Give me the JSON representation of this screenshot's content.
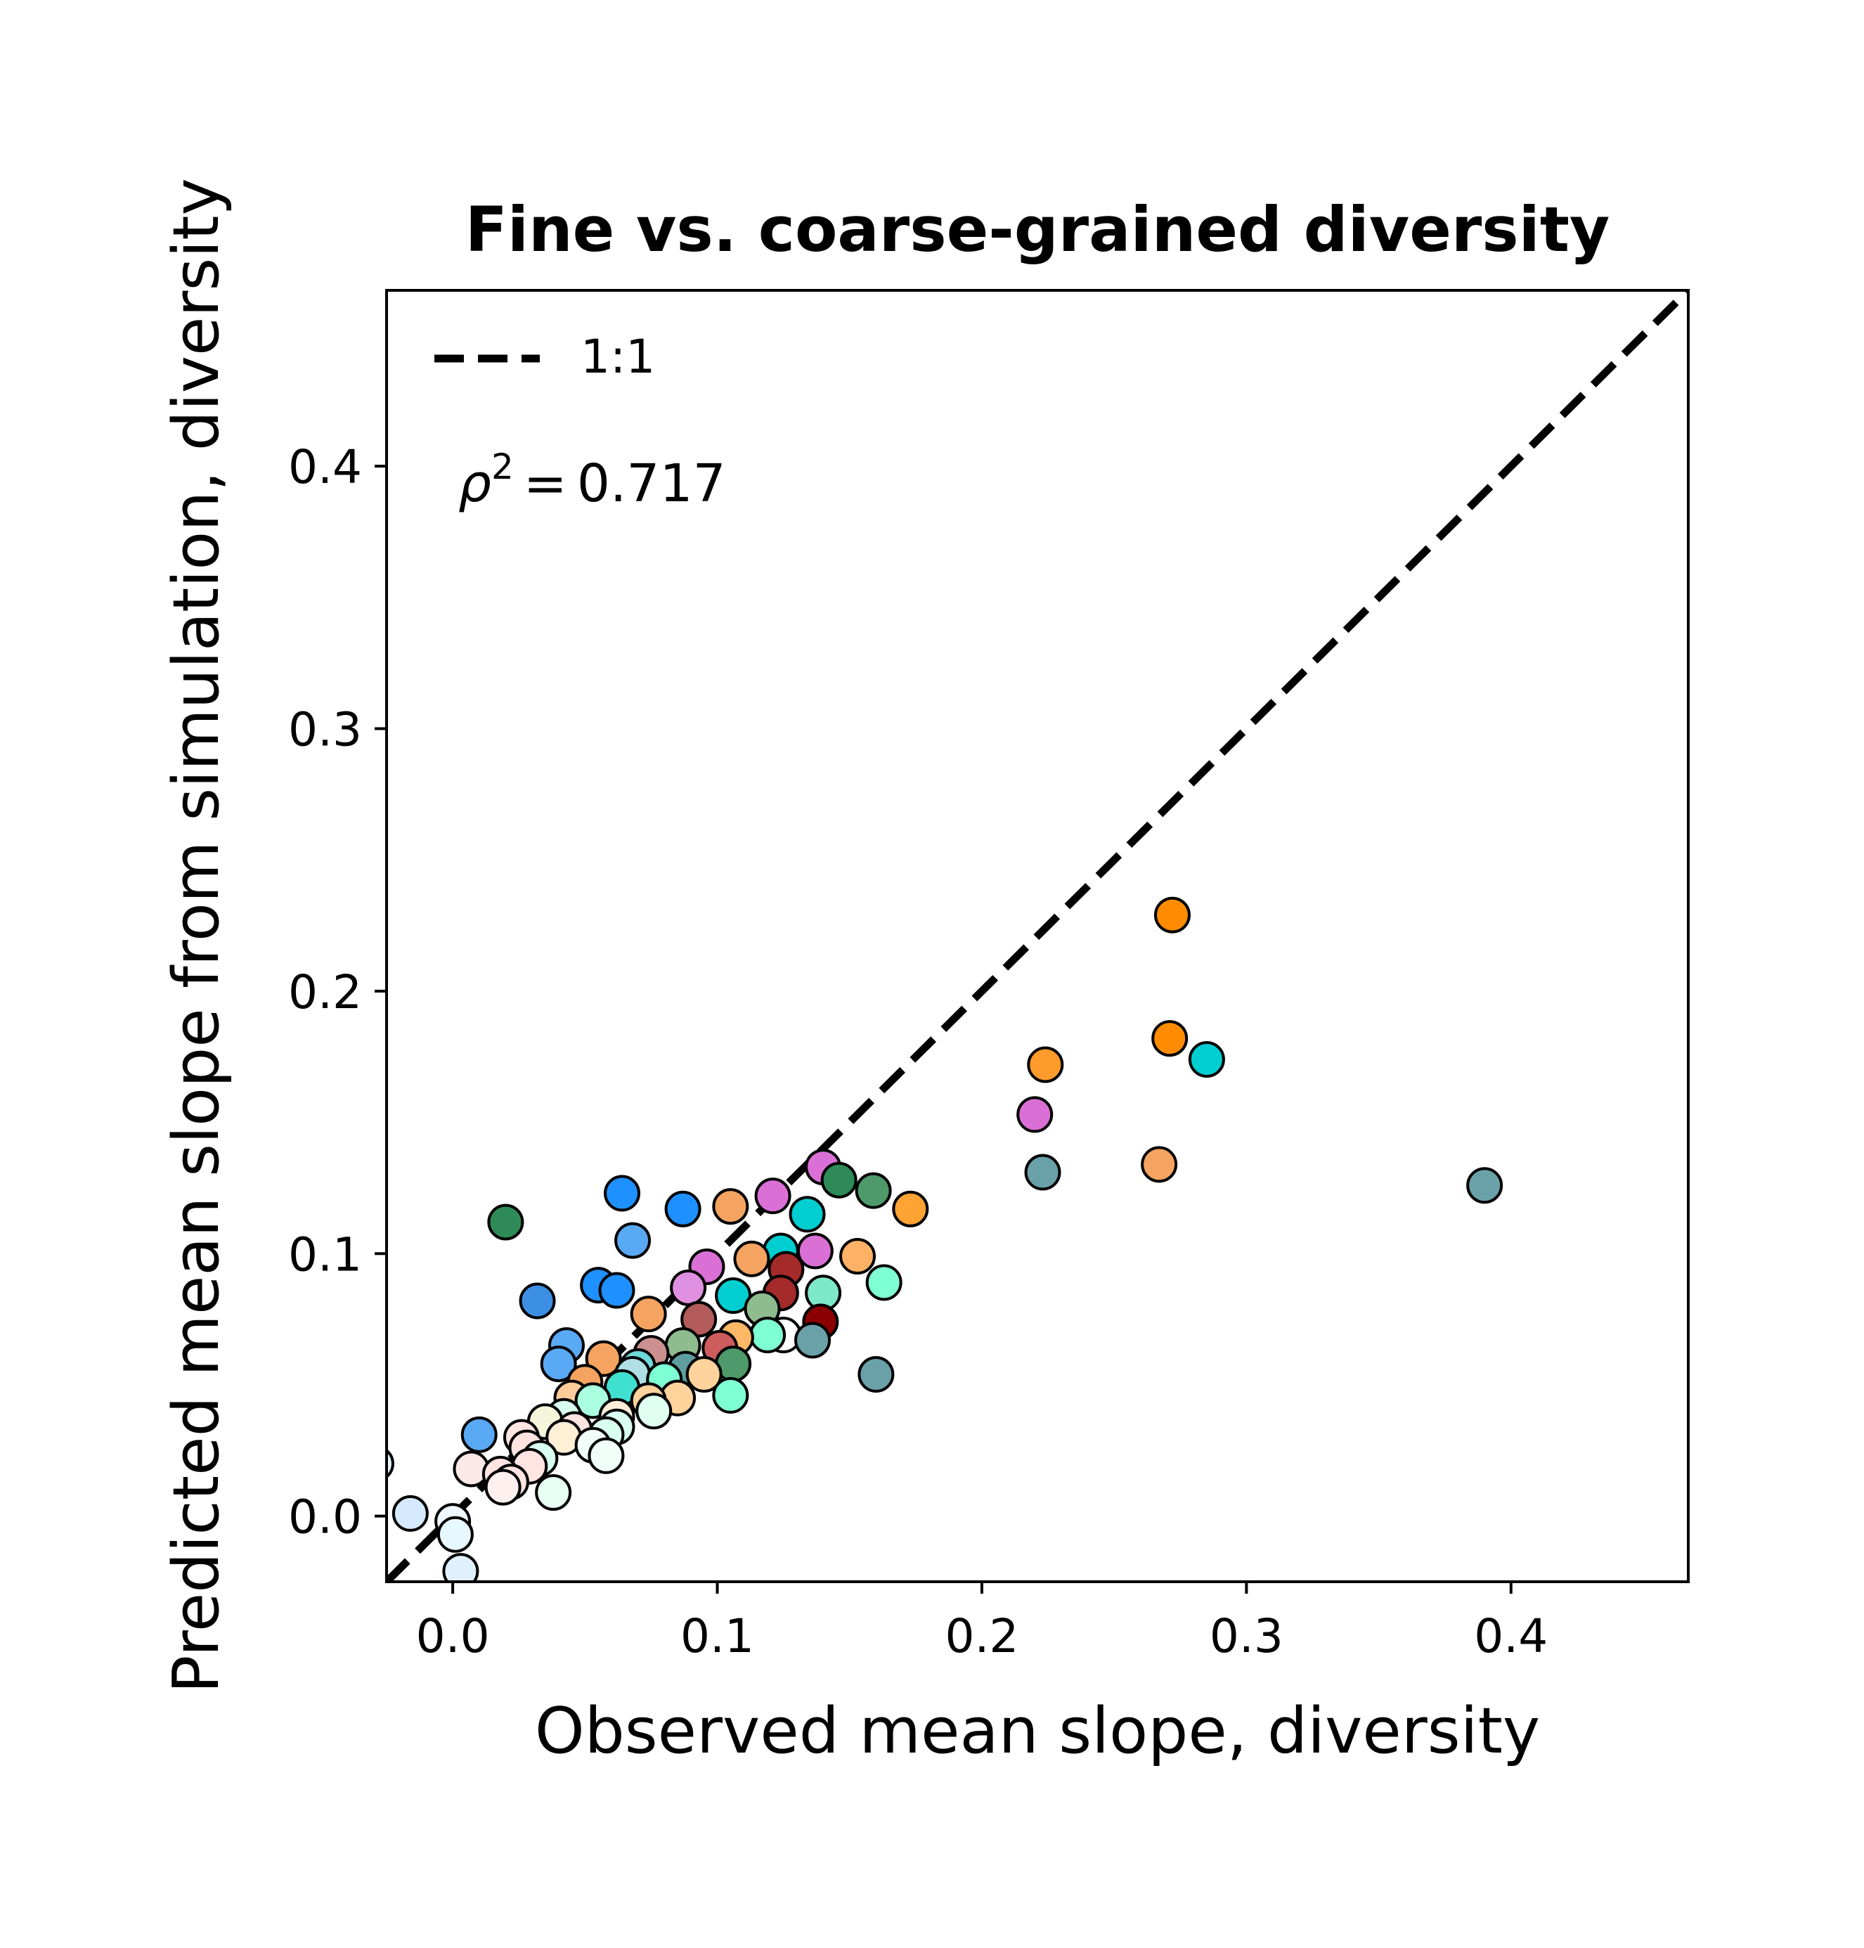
{
  "chart_data": {
    "type": "scatter",
    "title": "Fine vs. coarse-grained diversity",
    "xlabel": "Observed mean slope, diversity",
    "ylabel": "Predicted mean slope from simulation, diversity",
    "xlim": [
      -0.025,
      0.467
    ],
    "ylim": [
      -0.025,
      0.467
    ],
    "x_ticks": [
      0.0,
      0.1,
      0.2,
      0.3,
      0.4
    ],
    "y_ticks": [
      0.0,
      0.1,
      0.2,
      0.3,
      0.4
    ],
    "x_tick_labels": [
      "0.0",
      "0.1",
      "0.2",
      "0.3",
      "0.4"
    ],
    "y_tick_labels": [
      "0.0",
      "0.1",
      "0.2",
      "0.3",
      "0.4"
    ],
    "legend": {
      "label": "1:1",
      "location": "upper left",
      "frame": false
    },
    "annotation": {
      "symbol": "ρ",
      "superscript": "2",
      "operator": "=",
      "value": "0.717"
    },
    "reference_line": {
      "type": "identity",
      "style": "dashed",
      "color": "#000000"
    },
    "grid": false,
    "points": [
      {
        "x": 0.272,
        "y": 0.229,
        "color": "#ff8c00"
      },
      {
        "x": 0.271,
        "y": 0.182,
        "color": "#ff8c00"
      },
      {
        "x": 0.285,
        "y": 0.174,
        "color": "#00ced1"
      },
      {
        "x": 0.224,
        "y": 0.172,
        "color": "#ff9b2b"
      },
      {
        "x": 0.22,
        "y": 0.153,
        "color": "#da70d6"
      },
      {
        "x": 0.267,
        "y": 0.134,
        "color": "#f4a460"
      },
      {
        "x": 0.223,
        "y": 0.131,
        "color": "#6aa1a8"
      },
      {
        "x": 0.39,
        "y": 0.126,
        "color": "#6aa1a8"
      },
      {
        "x": 0.16,
        "y": 0.054,
        "color": "#6aa1a8"
      },
      {
        "x": 0.14,
        "y": 0.133,
        "color": "#da70d6"
      },
      {
        "x": 0.146,
        "y": 0.128,
        "color": "#2e8b57"
      },
      {
        "x": 0.159,
        "y": 0.124,
        "color": "#4e9a6a"
      },
      {
        "x": 0.173,
        "y": 0.117,
        "color": "#ffa333"
      },
      {
        "x": 0.121,
        "y": 0.122,
        "color": "#da70d6"
      },
      {
        "x": 0.105,
        "y": 0.118,
        "color": "#f4a460"
      },
      {
        "x": 0.087,
        "y": 0.117,
        "color": "#1e90ff"
      },
      {
        "x": 0.064,
        "y": 0.123,
        "color": "#1e90ff"
      },
      {
        "x": 0.134,
        "y": 0.115,
        "color": "#00ced1"
      },
      {
        "x": 0.02,
        "y": 0.112,
        "color": "#2e8b57"
      },
      {
        "x": 0.068,
        "y": 0.105,
        "color": "#5aa9f5"
      },
      {
        "x": 0.124,
        "y": 0.101,
        "color": "#00ced1"
      },
      {
        "x": 0.137,
        "y": 0.101,
        "color": "#da70d6"
      },
      {
        "x": 0.153,
        "y": 0.099,
        "color": "#ffb266"
      },
      {
        "x": 0.113,
        "y": 0.098,
        "color": "#f4a460"
      },
      {
        "x": 0.126,
        "y": 0.094,
        "color": "#a52a2a"
      },
      {
        "x": 0.096,
        "y": 0.095,
        "color": "#da70d6"
      },
      {
        "x": 0.163,
        "y": 0.089,
        "color": "#7fffd4"
      },
      {
        "x": 0.055,
        "y": 0.088,
        "color": "#1e90ff"
      },
      {
        "x": 0.089,
        "y": 0.087,
        "color": "#e090e0"
      },
      {
        "x": 0.062,
        "y": 0.086,
        "color": "#1e90ff"
      },
      {
        "x": 0.124,
        "y": 0.085,
        "color": "#a52a2a"
      },
      {
        "x": 0.14,
        "y": 0.085,
        "color": "#7fe8c8"
      },
      {
        "x": 0.106,
        "y": 0.084,
        "color": "#00ced1"
      },
      {
        "x": 0.032,
        "y": 0.082,
        "color": "#3d8fe6"
      },
      {
        "x": 0.117,
        "y": 0.079,
        "color": "#8fbc8f"
      },
      {
        "x": 0.074,
        "y": 0.077,
        "color": "#f4a460"
      },
      {
        "x": 0.093,
        "y": 0.075,
        "color": "#b35a5a"
      },
      {
        "x": 0.139,
        "y": 0.074,
        "color": "#8b0000"
      },
      {
        "x": 0.125,
        "y": 0.069,
        "color": "#ffffff"
      },
      {
        "x": 0.119,
        "y": 0.069,
        "color": "#7fffd4"
      },
      {
        "x": 0.107,
        "y": 0.068,
        "color": "#ffb866"
      },
      {
        "x": 0.136,
        "y": 0.067,
        "color": "#6aa1a8"
      },
      {
        "x": 0.043,
        "y": 0.065,
        "color": "#5aa9f5"
      },
      {
        "x": 0.087,
        "y": 0.065,
        "color": "#8fbc8f"
      },
      {
        "x": 0.101,
        "y": 0.064,
        "color": "#cd5c5c"
      },
      {
        "x": 0.075,
        "y": 0.062,
        "color": "#cd9090"
      },
      {
        "x": 0.057,
        "y": 0.06,
        "color": "#f4a460"
      },
      {
        "x": 0.106,
        "y": 0.058,
        "color": "#4e9a6a"
      },
      {
        "x": 0.04,
        "y": 0.058,
        "color": "#5aa9f5"
      },
      {
        "x": 0.07,
        "y": 0.057,
        "color": "#6fd8d8"
      },
      {
        "x": 0.088,
        "y": 0.056,
        "color": "#5f9ea0"
      },
      {
        "x": 0.095,
        "y": 0.054,
        "color": "#ffd39b"
      },
      {
        "x": 0.068,
        "y": 0.054,
        "color": "#b0e0e6"
      },
      {
        "x": 0.08,
        "y": 0.052,
        "color": "#7fffd4"
      },
      {
        "x": 0.05,
        "y": 0.051,
        "color": "#f4a460"
      },
      {
        "x": 0.064,
        "y": 0.049,
        "color": "#40e0d0"
      },
      {
        "x": 0.105,
        "y": 0.046,
        "color": "#7fffd4"
      },
      {
        "x": 0.085,
        "y": 0.045,
        "color": "#ffd39b"
      },
      {
        "x": 0.074,
        "y": 0.044,
        "color": "#ffd39b"
      },
      {
        "x": 0.045,
        "y": 0.045,
        "color": "#ffcc99"
      },
      {
        "x": 0.053,
        "y": 0.044,
        "color": "#aaffe0"
      },
      {
        "x": 0.076,
        "y": 0.04,
        "color": "#e0fff0"
      },
      {
        "x": 0.042,
        "y": 0.038,
        "color": "#d8fff0"
      },
      {
        "x": 0.062,
        "y": 0.038,
        "color": "#ffedd8"
      },
      {
        "x": 0.035,
        "y": 0.036,
        "color": "#f5f5dc"
      },
      {
        "x": 0.062,
        "y": 0.034,
        "color": "#d8fff0"
      },
      {
        "x": 0.046,
        "y": 0.033,
        "color": "#ffe4e1"
      },
      {
        "x": 0.058,
        "y": 0.031,
        "color": "#d8fff0"
      },
      {
        "x": 0.01,
        "y": 0.031,
        "color": "#5aa9f5"
      },
      {
        "x": 0.026,
        "y": 0.03,
        "color": "#ffe4e1"
      },
      {
        "x": 0.042,
        "y": 0.03,
        "color": "#ffefd5"
      },
      {
        "x": 0.053,
        "y": 0.027,
        "color": "#f0fff8"
      },
      {
        "x": 0.028,
        "y": 0.026,
        "color": "#ffe4e1"
      },
      {
        "x": 0.058,
        "y": 0.023,
        "color": "#f0fff8"
      },
      {
        "x": 0.033,
        "y": 0.022,
        "color": "#d8fff0"
      },
      {
        "x": 0.029,
        "y": 0.019,
        "color": "#ffe4e1"
      },
      {
        "x": 0.007,
        "y": 0.018,
        "color": "#fde8e8"
      },
      {
        "x": 0.018,
        "y": 0.016,
        "color": "#ffe4e1"
      },
      {
        "x": 0.022,
        "y": 0.013,
        "color": "#ffe4e1"
      },
      {
        "x": 0.019,
        "y": 0.011,
        "color": "#fff0f0"
      },
      {
        "x": 0.038,
        "y": 0.009,
        "color": "#e8fff4"
      },
      {
        "x": -0.016,
        "y": 0.001,
        "color": "#d6eaff"
      },
      {
        "x": 0.0,
        "y": -0.002,
        "color": "#f0f8ff"
      },
      {
        "x": 0.001,
        "y": -0.007,
        "color": "#e8f8ff"
      },
      {
        "x": 0.003,
        "y": -0.021,
        "color": "#e0f0ff"
      },
      {
        "x": -0.029,
        "y": 0.02,
        "color": "#e8f8ff"
      }
    ]
  }
}
